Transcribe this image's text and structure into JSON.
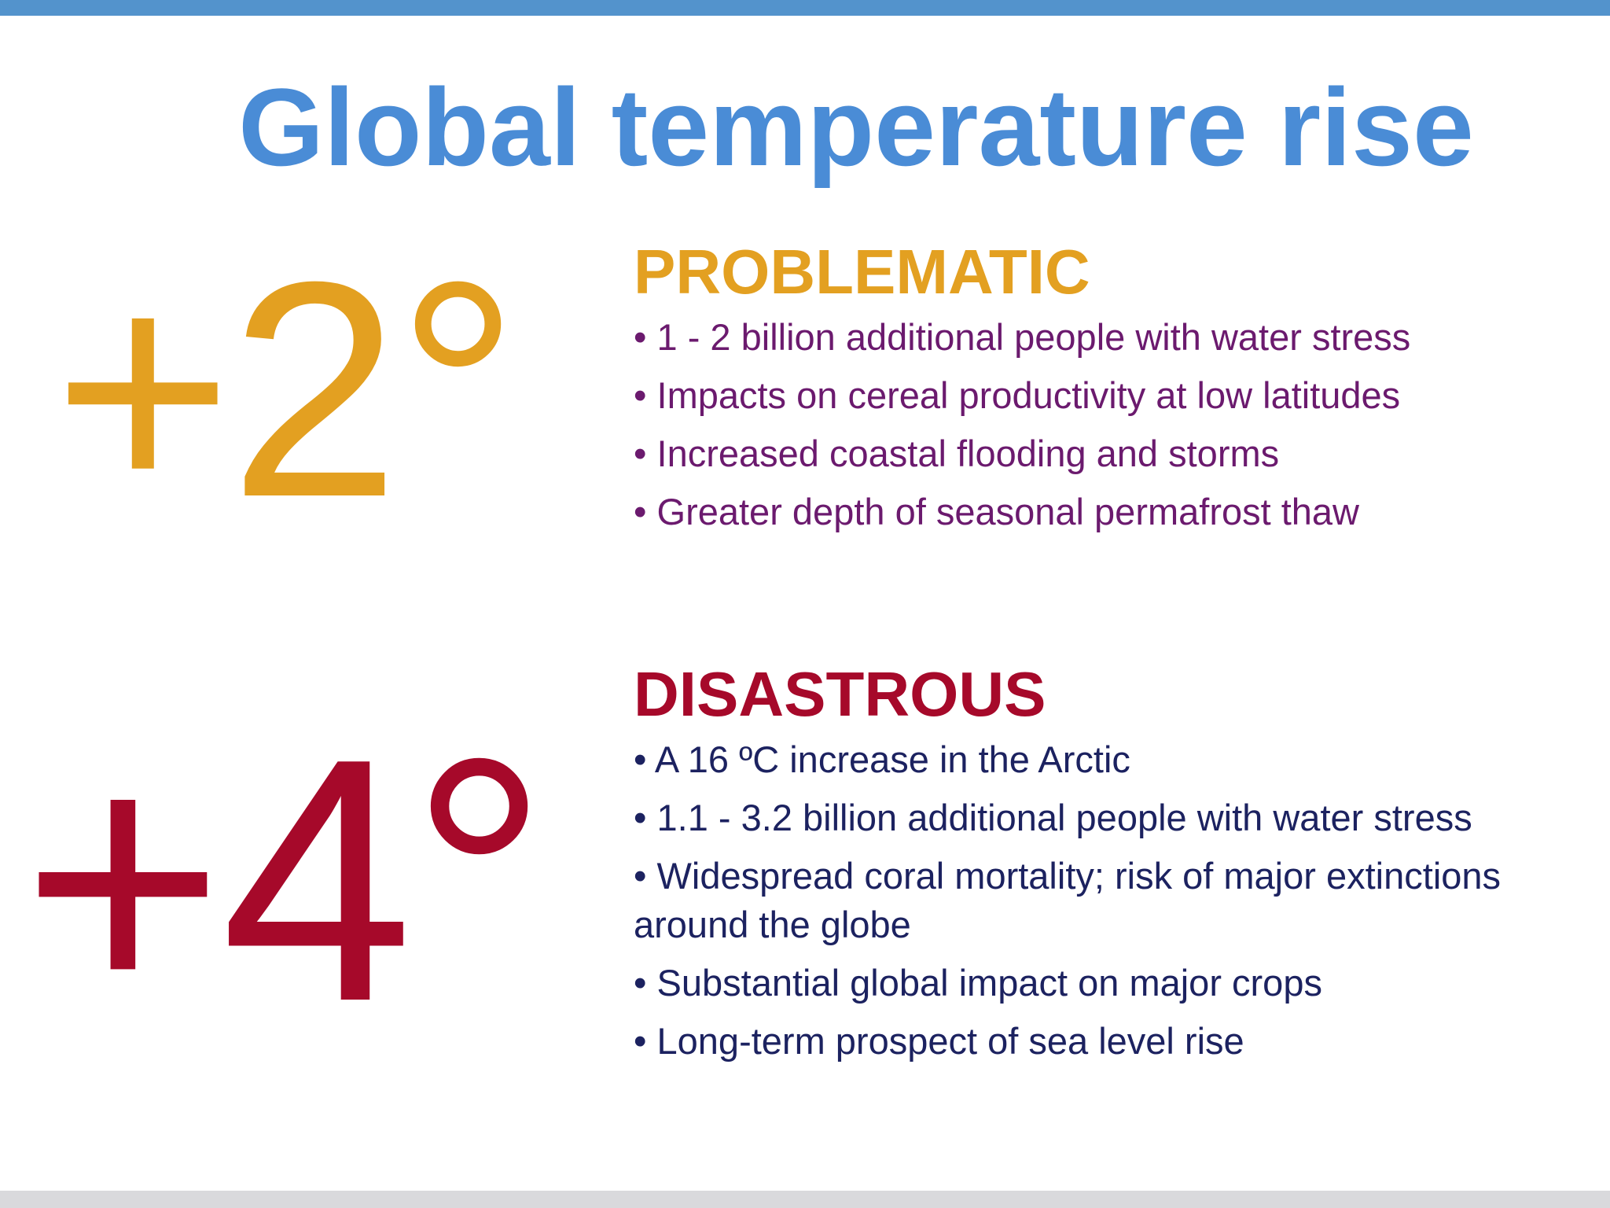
{
  "slide": {
    "title": "Global temperature rise",
    "accent_colors": {
      "top_bar": "#5393cc",
      "title": "#4a8cd6",
      "bottom_bar": "#d9d9dc"
    }
  },
  "levels": [
    {
      "rise_label": "+2°",
      "rise_color": "#e3a021",
      "heading": "PROBLEMATIC",
      "heading_color": "#e3a021",
      "bullet_color": "#6b1a6e",
      "bullets": [
        "1 - 2 billion additional people with water stress",
        "Impacts on cereal productivity at low latitudes",
        "Increased coastal flooding and storms",
        "Greater depth of seasonal permafrost thaw"
      ]
    },
    {
      "rise_label": "+4°",
      "rise_color": "#a6092a",
      "heading": "DISASTROUS",
      "heading_color": "#a6092a",
      "bullet_color": "#1c2260",
      "bullets": [
        "A 16 ºC increase in the Arctic",
        "1.1 - 3.2 billion additional people with water stress",
        "Widespread coral mortality; risk of major extinctions around the globe",
        "Substantial global impact on major crops",
        "Long-term prospect of sea level rise"
      ]
    }
  ]
}
